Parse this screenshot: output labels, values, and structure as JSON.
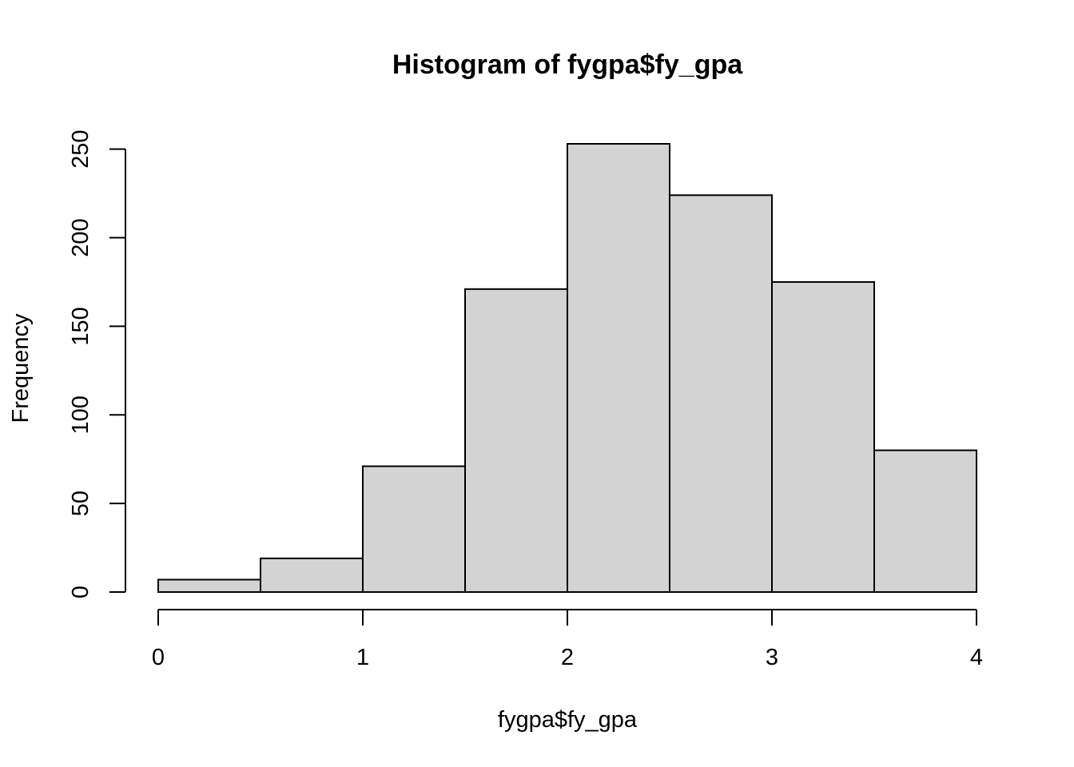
{
  "chart_data": {
    "type": "bar",
    "title": "Histogram of fygpa$fy_gpa",
    "xlabel": "fygpa$fy_gpa",
    "ylabel": "Frequency",
    "bins": [
      {
        "start": 0.0,
        "end": 0.5,
        "count": 7
      },
      {
        "start": 0.5,
        "end": 1.0,
        "count": 19
      },
      {
        "start": 1.0,
        "end": 1.5,
        "count": 71
      },
      {
        "start": 1.5,
        "end": 2.0,
        "count": 171
      },
      {
        "start": 2.0,
        "end": 2.5,
        "count": 253
      },
      {
        "start": 2.5,
        "end": 3.0,
        "count": 224
      },
      {
        "start": 3.0,
        "end": 3.5,
        "count": 175
      },
      {
        "start": 3.5,
        "end": 4.0,
        "count": 80
      }
    ],
    "xlim": [
      0,
      4
    ],
    "ylim": [
      0,
      253
    ],
    "x_ticks": [
      "0",
      "1",
      "2",
      "3",
      "4"
    ],
    "y_ticks": [
      "0",
      "50",
      "100",
      "150",
      "200",
      "250"
    ],
    "grid": false,
    "bar_fill": "#d3d3d3",
    "bar_stroke": "#000000"
  }
}
